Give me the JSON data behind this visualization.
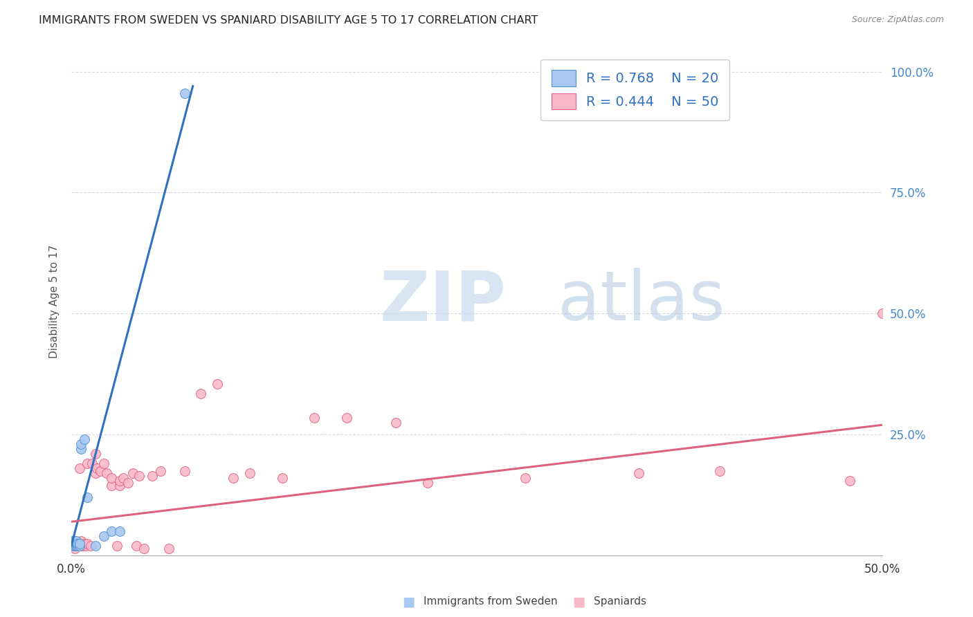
{
  "title": "IMMIGRANTS FROM SWEDEN VS SPANIARD DISABILITY AGE 5 TO 17 CORRELATION CHART",
  "source": "Source: ZipAtlas.com",
  "ylabel": "Disability Age 5 to 17",
  "xlim": [
    0.0,
    0.5
  ],
  "ylim": [
    0.0,
    1.05
  ],
  "sweden_fill_color": "#A8C8F0",
  "sweden_edge_color": "#5090D0",
  "spaniard_fill_color": "#F8B8C8",
  "spaniard_edge_color": "#E06080",
  "sweden_line_color": "#3070C0",
  "spaniard_line_color": "#E06080",
  "legend_R_sweden": "R = 0.768",
  "legend_N_sweden": "N = 20",
  "legend_R_spaniard": "R = 0.444",
  "legend_N_spaniard": "N = 50",
  "background_color": "#FFFFFF",
  "grid_color": "#D8D8E4",
  "sweden_x": [
    0.001,
    0.001,
    0.002,
    0.002,
    0.003,
    0.003,
    0.003,
    0.004,
    0.004,
    0.005,
    0.005,
    0.006,
    0.006,
    0.008,
    0.01,
    0.015,
    0.02,
    0.025,
    0.03,
    0.07
  ],
  "sweden_y": [
    0.02,
    0.03,
    0.02,
    0.03,
    0.02,
    0.025,
    0.03,
    0.02,
    0.025,
    0.02,
    0.025,
    0.22,
    0.23,
    0.24,
    0.12,
    0.02,
    0.04,
    0.05,
    0.05,
    0.955
  ],
  "spaniard_x": [
    0.001,
    0.002,
    0.003,
    0.003,
    0.004,
    0.005,
    0.005,
    0.006,
    0.007,
    0.008,
    0.009,
    0.01,
    0.01,
    0.012,
    0.013,
    0.015,
    0.015,
    0.016,
    0.018,
    0.02,
    0.022,
    0.025,
    0.025,
    0.028,
    0.03,
    0.03,
    0.032,
    0.035,
    0.038,
    0.04,
    0.042,
    0.045,
    0.05,
    0.055,
    0.06,
    0.07,
    0.08,
    0.09,
    0.1,
    0.11,
    0.13,
    0.15,
    0.17,
    0.2,
    0.22,
    0.28,
    0.35,
    0.4,
    0.48,
    0.5
  ],
  "spaniard_y": [
    0.02,
    0.015,
    0.02,
    0.025,
    0.025,
    0.02,
    0.18,
    0.03,
    0.02,
    0.025,
    0.02,
    0.025,
    0.19,
    0.02,
    0.19,
    0.21,
    0.17,
    0.18,
    0.175,
    0.19,
    0.17,
    0.145,
    0.16,
    0.02,
    0.145,
    0.155,
    0.16,
    0.15,
    0.17,
    0.02,
    0.165,
    0.015,
    0.165,
    0.175,
    0.015,
    0.175,
    0.335,
    0.355,
    0.16,
    0.17,
    0.16,
    0.285,
    0.285,
    0.275,
    0.15,
    0.16,
    0.17,
    0.175,
    0.155,
    0.5
  ],
  "yticks": [
    0.0,
    0.25,
    0.5,
    0.75,
    1.0
  ],
  "ytick_labels": [
    "",
    "25.0%",
    "50.0%",
    "75.0%",
    "100.0%"
  ]
}
